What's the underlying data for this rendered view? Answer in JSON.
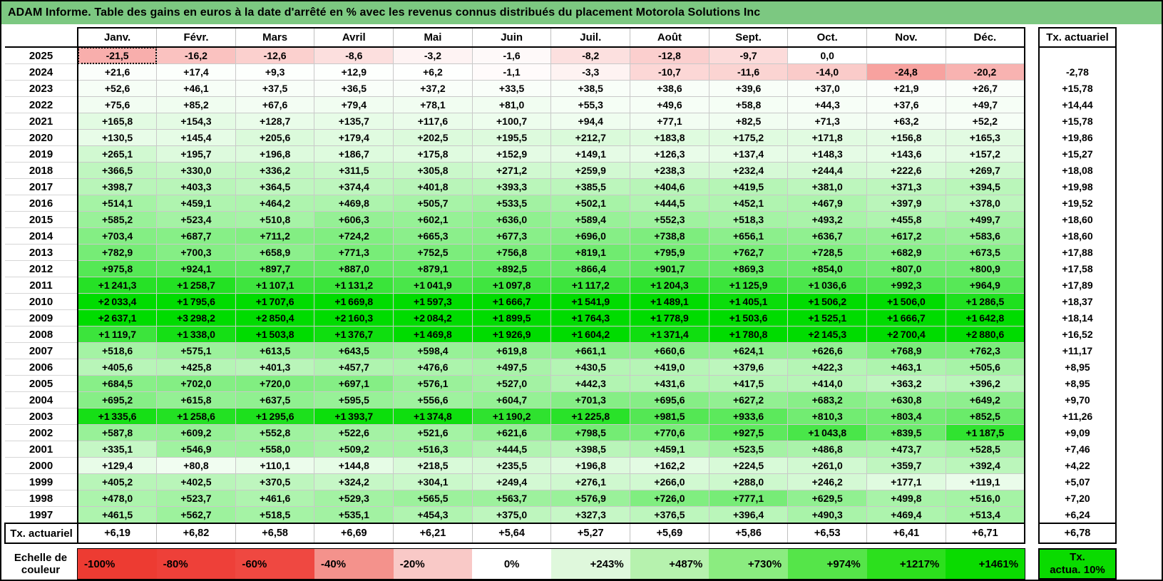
{
  "chart_data": {
    "type": "heatmap",
    "title": "ADAM Informe. Table des gains en euros à la date d'arrêté en % avec les revenus connus distribués du placement Motorola Solutions Inc",
    "columns": [
      "Janv.",
      "Févr.",
      "Mars",
      "Avril",
      "Mai",
      "Juin",
      "Juil.",
      "Août",
      "Sept.",
      "Oct.",
      "Nov.",
      "Déc."
    ],
    "right_column_header": "Tx. actuariel",
    "rows": [
      {
        "year": "2025",
        "values": [
          -21.5,
          -16.2,
          -12.6,
          -8.6,
          -3.2,
          -1.6,
          -8.2,
          -12.8,
          -9.7,
          0.0,
          null,
          null
        ],
        "tx_actuariel": null
      },
      {
        "year": "2024",
        "values": [
          21.6,
          17.4,
          9.3,
          12.9,
          6.2,
          -1.1,
          -3.3,
          -10.7,
          -11.6,
          -14.0,
          -24.8,
          -20.2
        ],
        "tx_actuariel": -2.78
      },
      {
        "year": "2023",
        "values": [
          52.6,
          46.1,
          37.5,
          36.5,
          37.2,
          33.5,
          38.5,
          38.6,
          39.6,
          37.0,
          21.9,
          26.7
        ],
        "tx_actuariel": 15.78
      },
      {
        "year": "2022",
        "values": [
          75.6,
          85.2,
          67.6,
          79.4,
          78.1,
          81.0,
          55.3,
          49.6,
          58.8,
          44.3,
          37.6,
          49.7
        ],
        "tx_actuariel": 14.44
      },
      {
        "year": "2021",
        "values": [
          165.8,
          154.3,
          128.7,
          135.7,
          117.6,
          100.7,
          94.4,
          77.1,
          82.5,
          71.3,
          63.2,
          52.2
        ],
        "tx_actuariel": 15.78
      },
      {
        "year": "2020",
        "values": [
          130.5,
          145.4,
          205.6,
          179.4,
          202.5,
          195.5,
          212.7,
          183.8,
          175.2,
          171.8,
          156.8,
          165.3
        ],
        "tx_actuariel": 19.86
      },
      {
        "year": "2019",
        "values": [
          265.1,
          195.7,
          196.8,
          186.7,
          175.8,
          152.9,
          149.1,
          126.3,
          137.4,
          148.3,
          143.6,
          157.2
        ],
        "tx_actuariel": 15.27
      },
      {
        "year": "2018",
        "values": [
          366.5,
          330.0,
          336.2,
          311.5,
          305.8,
          271.2,
          259.9,
          238.3,
          232.4,
          244.4,
          222.6,
          269.7
        ],
        "tx_actuariel": 18.08
      },
      {
        "year": "2017",
        "values": [
          398.7,
          403.3,
          364.5,
          374.4,
          401.8,
          393.3,
          385.5,
          404.6,
          419.5,
          381.0,
          371.3,
          394.5
        ],
        "tx_actuariel": 19.98
      },
      {
        "year": "2016",
        "values": [
          514.1,
          459.1,
          464.2,
          469.8,
          505.7,
          533.5,
          502.1,
          444.5,
          452.1,
          467.9,
          397.9,
          378.0
        ],
        "tx_actuariel": 19.52
      },
      {
        "year": "2015",
        "values": [
          585.2,
          523.4,
          510.8,
          606.3,
          602.1,
          636.0,
          589.4,
          552.3,
          518.3,
          493.2,
          455.8,
          499.7
        ],
        "tx_actuariel": 18.6
      },
      {
        "year": "2014",
        "values": [
          703.4,
          687.7,
          711.2,
          724.2,
          665.3,
          677.3,
          696.0,
          738.8,
          656.1,
          636.7,
          617.2,
          583.6
        ],
        "tx_actuariel": 18.6
      },
      {
        "year": "2013",
        "values": [
          782.9,
          700.3,
          658.9,
          771.3,
          752.5,
          756.8,
          819.1,
          795.9,
          762.7,
          728.5,
          682.9,
          673.5
        ],
        "tx_actuariel": 17.88
      },
      {
        "year": "2012",
        "values": [
          975.8,
          924.1,
          897.7,
          887.0,
          879.1,
          892.5,
          866.4,
          901.7,
          869.3,
          854.0,
          807.0,
          800.9
        ],
        "tx_actuariel": 17.58
      },
      {
        "year": "2011",
        "values": [
          1241.3,
          1258.7,
          1107.1,
          1131.2,
          1041.9,
          1097.8,
          1117.2,
          1204.3,
          1125.9,
          1036.6,
          992.3,
          964.9
        ],
        "tx_actuariel": 17.89
      },
      {
        "year": "2010",
        "values": [
          2033.4,
          1795.6,
          1707.6,
          1669.8,
          1597.3,
          1666.7,
          1541.9,
          1489.1,
          1405.1,
          1506.2,
          1506.0,
          1286.5
        ],
        "tx_actuariel": 18.37
      },
      {
        "year": "2009",
        "values": [
          2637.1,
          3298.2,
          2850.4,
          2160.3,
          2084.2,
          1899.5,
          1764.3,
          1778.9,
          1503.6,
          1525.1,
          1666.7,
          1642.8
        ],
        "tx_actuariel": 18.14
      },
      {
        "year": "2008",
        "values": [
          1119.7,
          1338.0,
          1503.8,
          1376.7,
          1469.8,
          1926.9,
          1604.2,
          1371.4,
          1780.8,
          2145.3,
          2700.4,
          2880.6
        ],
        "tx_actuariel": 16.52
      },
      {
        "year": "2007",
        "values": [
          518.6,
          575.1,
          613.5,
          643.5,
          598.4,
          619.8,
          661.1,
          660.6,
          624.1,
          626.6,
          768.9,
          762.3
        ],
        "tx_actuariel": 11.17
      },
      {
        "year": "2006",
        "values": [
          405.6,
          425.8,
          401.3,
          457.7,
          476.6,
          497.5,
          430.5,
          419.0,
          379.6,
          422.3,
          463.1,
          505.6
        ],
        "tx_actuariel": 8.95
      },
      {
        "year": "2005",
        "values": [
          684.5,
          702.0,
          720.0,
          697.1,
          576.1,
          527.0,
          442.3,
          431.6,
          417.5,
          414.0,
          363.2,
          396.2
        ],
        "tx_actuariel": 8.95
      },
      {
        "year": "2004",
        "values": [
          695.2,
          615.8,
          637.5,
          595.5,
          556.6,
          604.7,
          701.3,
          695.6,
          627.2,
          683.2,
          630.8,
          649.2
        ],
        "tx_actuariel": 9.7
      },
      {
        "year": "2003",
        "values": [
          1335.6,
          1258.6,
          1295.6,
          1393.7,
          1374.8,
          1190.2,
          1225.8,
          981.5,
          933.6,
          810.3,
          803.4,
          852.5
        ],
        "tx_actuariel": 11.26
      },
      {
        "year": "2002",
        "values": [
          587.8,
          609.2,
          552.8,
          522.6,
          521.6,
          621.6,
          798.5,
          770.6,
          927.5,
          1043.8,
          839.5,
          1187.5
        ],
        "tx_actuariel": 9.09
      },
      {
        "year": "2001",
        "values": [
          335.1,
          546.9,
          558.0,
          509.2,
          516.3,
          444.5,
          398.5,
          459.1,
          523.5,
          486.8,
          473.7,
          528.5
        ],
        "tx_actuariel": 7.46
      },
      {
        "year": "2000",
        "values": [
          129.4,
          80.8,
          110.1,
          144.8,
          218.5,
          235.5,
          196.8,
          162.2,
          224.5,
          261.0,
          359.7,
          392.4
        ],
        "tx_actuariel": 4.22
      },
      {
        "year": "1999",
        "values": [
          405.2,
          402.5,
          370.5,
          324.2,
          304.1,
          249.4,
          276.1,
          266.0,
          288.0,
          246.2,
          177.1,
          119.1
        ],
        "tx_actuariel": 5.07
      },
      {
        "year": "1998",
        "values": [
          478.0,
          523.7,
          461.6,
          529.3,
          565.5,
          563.7,
          576.9,
          726.0,
          777.1,
          629.5,
          499.8,
          516.0
        ],
        "tx_actuariel": 7.2
      },
      {
        "year": "1997",
        "values": [
          461.5,
          562.7,
          518.5,
          535.1,
          454.3,
          375.0,
          327.3,
          376.5,
          396.4,
          490.3,
          469.4,
          513.4
        ],
        "tx_actuariel": 6.24
      }
    ],
    "footer": {
      "label": "Tx. actuariel",
      "values": [
        6.19,
        6.82,
        6.58,
        6.69,
        6.21,
        5.64,
        5.27,
        5.69,
        5.86,
        6.53,
        6.41,
        6.71
      ],
      "tx_actuariel": 6.78
    },
    "selection": {
      "year": "2025",
      "column": "Janv."
    },
    "color_scale": {
      "label": "Echelle de couleur",
      "entries": [
        {
          "label": "-100%",
          "color": "#ED3B32"
        },
        {
          "label": "-80%",
          "color": "#EE4039"
        },
        {
          "label": "-60%",
          "color": "#EF4841"
        },
        {
          "label": "-40%",
          "color": "#F4928C"
        },
        {
          "label": "-20%",
          "color": "#F9C9C7"
        },
        {
          "label": "0%",
          "color": "#FFFFFF"
        },
        {
          "label": "+243%",
          "color": "#DFF8DC"
        },
        {
          "label": "+487%",
          "color": "#B6F2AE"
        },
        {
          "label": "+730%",
          "color": "#8BEC80"
        },
        {
          "label": "+974%",
          "color": "#55E549"
        },
        {
          "label": "+1217%",
          "color": "#2CE01D"
        },
        {
          "label": "+1461%",
          "color": "#0ADB00"
        }
      ],
      "box_line1": "Tx.",
      "box_line2": "actua. 10%",
      "box_color": "#0ADB00"
    },
    "colors": {
      "title_bg": "#7CC881",
      "positive_max": "#00DC00",
      "negative_max": "#EE3C36",
      "zero": "#FFFFFF"
    }
  }
}
